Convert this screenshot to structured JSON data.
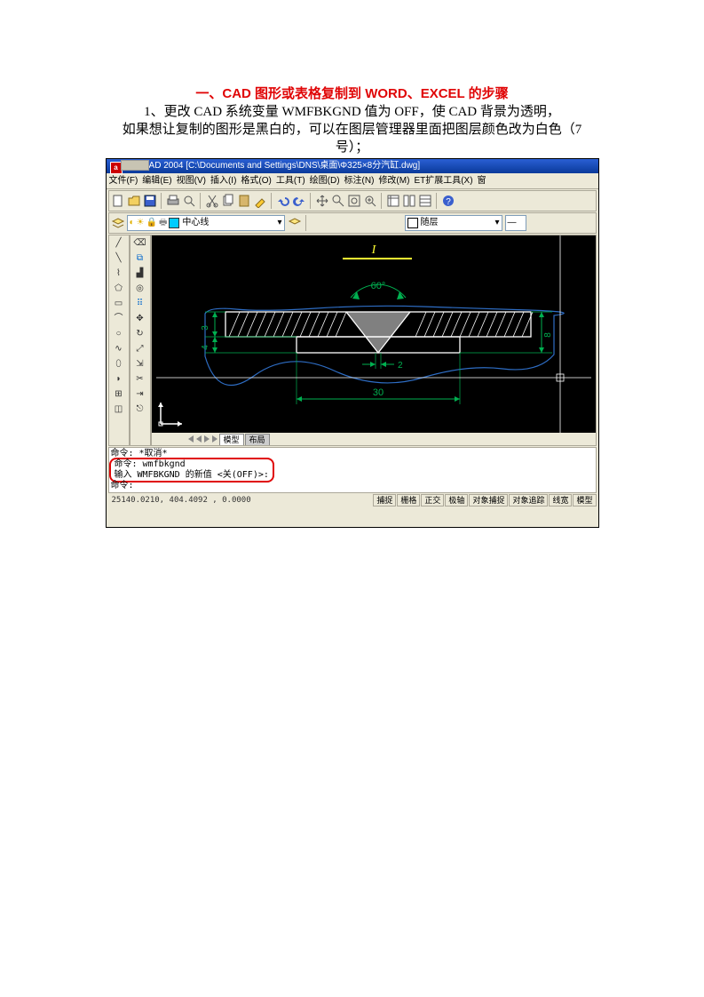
{
  "doc": {
    "title": "一、CAD 图形或表格复制到 WORD、EXCEL 的步骤",
    "p1": "1、更改 CAD 系统变量 WMFBKGND 值为 OFF，使 CAD 背景为透明，",
    "p2": "如果想让复制的图形是黑白的，可以在图层管理器里面把图层颜色改为白色（7",
    "p3": "号）；"
  },
  "cad": {
    "title": "AutoCAD 2004  [C:\\Documents and Settings\\DNS\\桌面\\Φ325×8分汽缸.dwg]",
    "menus": [
      "文件(F)",
      "编辑(E)",
      "视图(V)",
      "插入(I)",
      "格式(O)",
      "工具(T)",
      "绘图(D)",
      "标注(N)",
      "修改(M)",
      "ET扩展工具(X)",
      "窗"
    ],
    "layer_panel": {
      "layer_name": "中心线",
      "swatch1": "#00ccff",
      "lineset": "随层",
      "linecolor": "#ffffff"
    },
    "drawing": {
      "angle": "60°",
      "dim_h_top": "3",
      "dim_h_bot": "4",
      "dim_h_right": "8",
      "dim_gap": "2",
      "dim_width": "30",
      "label_top": "I",
      "colors": {
        "dim": "#00b050",
        "outline": "#2e6dc4",
        "label": "#ffff33",
        "fill": "#808080",
        "hatch": "#ffffff"
      }
    },
    "tabs": {
      "model": "模型",
      "layout": "布局"
    },
    "cmd": {
      "l1": "命令: *取消*",
      "l2": "命令: wmfbkgnd",
      "l3": "输入 WMFBKGND 的新值 <关(OFF)>:",
      "l4": "命令:"
    },
    "status": {
      "coords": "25140.0210, 404.4092 , 0.0000",
      "cells": [
        "捕捉",
        "栅格",
        "正交",
        "极轴",
        "对象捕捉",
        "对象追踪",
        "线宽",
        "模型"
      ]
    }
  }
}
